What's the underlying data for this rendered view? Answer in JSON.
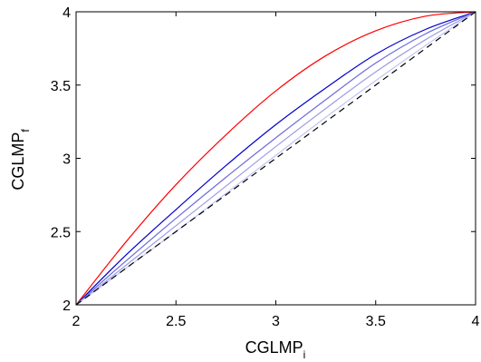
{
  "chart_data": {
    "type": "line",
    "title": "",
    "xlabel": {
      "main": "CGLMP",
      "sub": "i"
    },
    "ylabel": {
      "main": "CGLMP",
      "sub": "f"
    },
    "xlim": [
      2,
      4
    ],
    "ylim": [
      2,
      4
    ],
    "xticks": [
      "2",
      "2.5",
      "3",
      "3.5",
      "4"
    ],
    "yticks": [
      "2",
      "2.5",
      "3",
      "3.5",
      "4"
    ],
    "grid": false,
    "legend": "none",
    "series": [
      {
        "color": "#ff0000",
        "style": "solid",
        "x": [
          2,
          2.25,
          2.5,
          2.75,
          3,
          3.25,
          3.5,
          3.75,
          4
        ],
        "y": [
          2,
          2.43,
          2.82,
          3.16,
          3.46,
          3.7,
          3.87,
          3.97,
          4
        ]
      },
      {
        "color": "#0000cc",
        "style": "solid",
        "x": [
          2,
          2.25,
          2.5,
          2.75,
          3,
          3.25,
          3.5,
          3.75,
          4
        ],
        "y": [
          2,
          2.34,
          2.65,
          2.95,
          3.23,
          3.48,
          3.71,
          3.88,
          4
        ]
      },
      {
        "color": "#6b6bdc",
        "style": "solid",
        "x": [
          2,
          2.25,
          2.5,
          2.75,
          3,
          3.25,
          3.5,
          3.75,
          4
        ],
        "y": [
          2,
          2.3,
          2.59,
          2.87,
          3.14,
          3.4,
          3.65,
          3.85,
          4
        ]
      },
      {
        "color": "#9c9ce6",
        "style": "solid",
        "x": [
          2,
          2.25,
          2.5,
          2.75,
          3,
          3.25,
          3.5,
          3.75,
          4
        ],
        "y": [
          2,
          2.27,
          2.54,
          2.81,
          3.08,
          3.34,
          3.59,
          3.81,
          4
        ]
      },
      {
        "color": "#c3c3f0",
        "style": "solid",
        "x": [
          2,
          2.25,
          2.5,
          2.75,
          3,
          3.25,
          3.5,
          3.75,
          4
        ],
        "y": [
          2,
          2.25,
          2.5,
          2.76,
          3.02,
          3.28,
          3.53,
          3.77,
          4
        ]
      },
      {
        "color": "#000000",
        "style": "dashed",
        "x": [
          2,
          4
        ],
        "y": [
          2,
          4
        ]
      }
    ]
  }
}
